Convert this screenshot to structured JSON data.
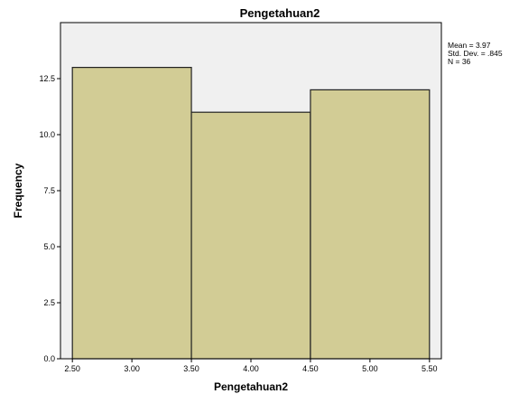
{
  "chart_data": {
    "type": "bar",
    "title": "Pengetahuan2",
    "xlabel": "Pengetahuan2",
    "ylabel": "Frequency",
    "bin_edges": [
      2.5,
      3.5,
      4.5,
      5.5
    ],
    "values": [
      13,
      11,
      12
    ],
    "xlim": [
      2.4,
      5.6
    ],
    "ylim": [
      0,
      15
    ],
    "x_ticks": [
      "2.50",
      "3.00",
      "3.50",
      "4.00",
      "4.50",
      "5.00",
      "5.50"
    ],
    "y_ticks": [
      "0.0",
      "2.5",
      "5.0",
      "7.5",
      "10.0",
      "12.5"
    ],
    "grid": false,
    "colors": {
      "bar_fill": "#d2cc95",
      "bar_stroke": "#222222",
      "plot_background": "#f0f0f0"
    },
    "stats": {
      "mean": "Mean = 3.97",
      "std": "Std. Dev. = .845",
      "n": "N = 36"
    }
  }
}
